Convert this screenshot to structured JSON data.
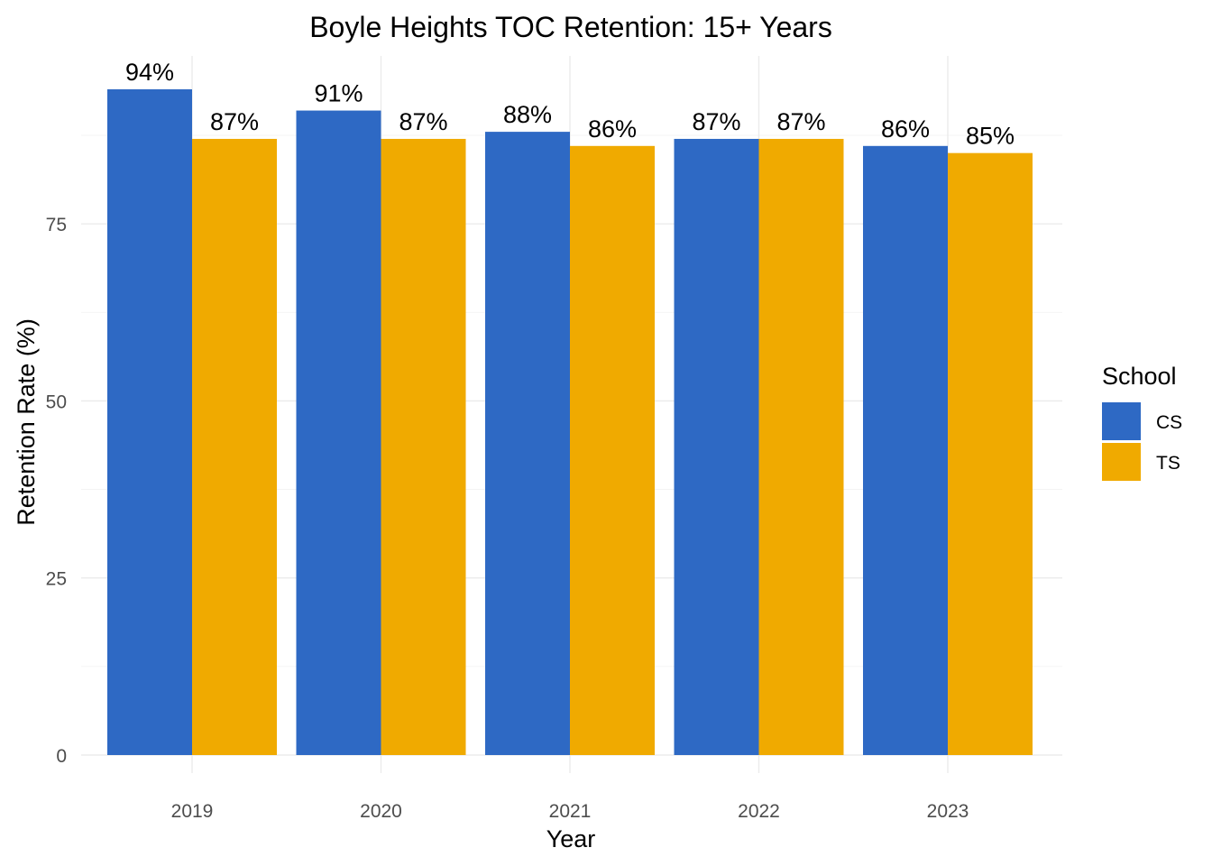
{
  "chart_data": {
    "type": "bar",
    "title": "Boyle Heights TOC Retention: 15+ Years",
    "xlabel": "Year",
    "ylabel": "Retention Rate (%)",
    "categories": [
      "2019",
      "2020",
      "2021",
      "2022",
      "2023"
    ],
    "series": [
      {
        "name": "CS",
        "color": "#2E69C4",
        "values": [
          94,
          91,
          88,
          87,
          86
        ],
        "labels": [
          "94%",
          "91%",
          "88%",
          "87%",
          "86%"
        ]
      },
      {
        "name": "TS",
        "color": "#F0AA00",
        "values": [
          87,
          87,
          86,
          87,
          85
        ],
        "labels": [
          "87%",
          "87%",
          "86%",
          "87%",
          "85%"
        ]
      }
    ],
    "ylim": [
      0,
      94
    ],
    "yticks": [
      0,
      25,
      50,
      75
    ],
    "ytick_labels": [
      "0",
      "25",
      "50",
      "75"
    ],
    "grid": true,
    "legend": {
      "title": "School",
      "position": "right"
    }
  }
}
